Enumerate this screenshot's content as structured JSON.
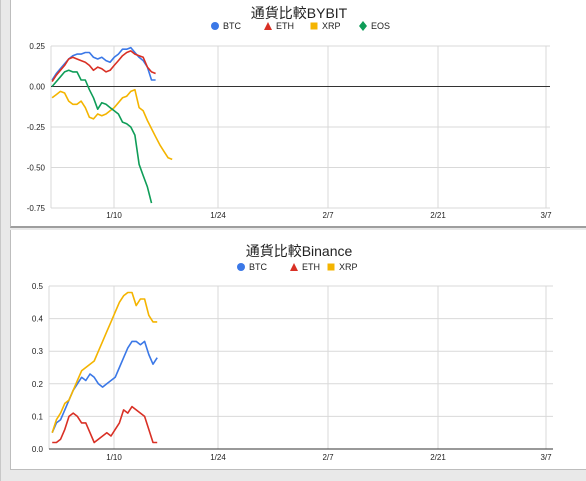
{
  "chart_data": [
    {
      "type": "line",
      "title": "通貨比較BYBIT",
      "xlabel": "",
      "ylabel": "",
      "x_tick_labels": [
        "1/10",
        "1/24",
        "2/7",
        "2/21",
        "3/7"
      ],
      "y_tick_labels": [
        "0.25",
        "0.00",
        "-0.25",
        "-0.50",
        "-0.75"
      ],
      "ylim": [
        -0.75,
        0.25
      ],
      "grid": true,
      "legend": "top",
      "series": [
        {
          "name": "BTC",
          "color": "#3b78e7",
          "marker": "circle",
          "x": [
            1,
            2,
            3,
            4,
            5,
            6,
            7,
            8,
            9,
            10,
            11,
            12,
            13,
            14,
            15,
            16,
            17,
            18,
            19,
            20,
            21,
            22,
            23,
            24,
            25,
            26
          ],
          "values": [
            0.04,
            0.08,
            0.11,
            0.14,
            0.17,
            0.19,
            0.2,
            0.2,
            0.21,
            0.21,
            0.18,
            0.17,
            0.18,
            0.16,
            0.15,
            0.18,
            0.2,
            0.23,
            0.23,
            0.24,
            0.21,
            0.18,
            0.16,
            0.12,
            0.04,
            0.04
          ]
        },
        {
          "name": "ETH",
          "color": "#d93025",
          "marker": "triangle",
          "x": [
            1,
            2,
            3,
            4,
            5,
            6,
            7,
            8,
            9,
            10,
            11,
            12,
            13,
            14,
            15,
            16,
            17,
            18,
            19,
            20,
            21,
            22,
            23,
            24,
            25,
            26
          ],
          "values": [
            0.03,
            0.07,
            0.1,
            0.13,
            0.17,
            0.18,
            0.17,
            0.16,
            0.15,
            0.13,
            0.1,
            0.12,
            0.11,
            0.09,
            0.1,
            0.13,
            0.16,
            0.19,
            0.21,
            0.22,
            0.2,
            0.19,
            0.18,
            0.12,
            0.09,
            0.08
          ]
        },
        {
          "name": "XRP",
          "color": "#f4b400",
          "marker": "square",
          "x": [
            1,
            2,
            3,
            4,
            5,
            6,
            7,
            8,
            9,
            10,
            11,
            12,
            13,
            14,
            15,
            16,
            17,
            18,
            19,
            20,
            21,
            22,
            23,
            24,
            25,
            26,
            27,
            28,
            29,
            30
          ],
          "values": [
            -0.07,
            -0.05,
            -0.03,
            -0.04,
            -0.09,
            -0.11,
            -0.11,
            -0.09,
            -0.13,
            -0.19,
            -0.2,
            -0.17,
            -0.18,
            -0.17,
            -0.15,
            -0.13,
            -0.1,
            -0.07,
            -0.06,
            -0.03,
            -0.02,
            -0.13,
            -0.15,
            -0.21,
            -0.26,
            -0.31,
            -0.36,
            -0.4,
            -0.44,
            -0.45
          ]
        },
        {
          "name": "EOS",
          "color": "#0f9d58",
          "marker": "diamond",
          "x": [
            1,
            2,
            3,
            4,
            5,
            6,
            7,
            8,
            9,
            10,
            11,
            12,
            13,
            14,
            15,
            16,
            17,
            18,
            19,
            20,
            21,
            22,
            23,
            24,
            25
          ],
          "values": [
            0.0,
            0.03,
            0.06,
            0.09,
            0.1,
            0.09,
            0.09,
            0.04,
            0.04,
            -0.02,
            -0.07,
            -0.14,
            -0.1,
            -0.11,
            -0.13,
            -0.15,
            -0.17,
            -0.22,
            -0.23,
            -0.25,
            -0.3,
            -0.48,
            -0.55,
            -0.62,
            -0.72
          ]
        }
      ]
    },
    {
      "type": "line",
      "title": "通貨比較Binance",
      "xlabel": "",
      "ylabel": "",
      "x_tick_labels": [
        "1/10",
        "1/24",
        "2/7",
        "2/21",
        "3/7"
      ],
      "y_tick_labels": [
        "0.5",
        "0.4",
        "0.3",
        "0.2",
        "0.1",
        "0.0"
      ],
      "ylim": [
        0.0,
        0.5
      ],
      "grid": true,
      "legend": "top",
      "series": [
        {
          "name": "BTC",
          "color": "#3b78e7",
          "marker": "circle",
          "x": [
            1,
            2,
            3,
            4,
            5,
            6,
            7,
            8,
            9,
            10,
            11,
            12,
            13,
            14,
            15,
            16,
            17,
            18,
            19,
            20,
            21,
            22,
            23,
            24,
            25,
            26
          ],
          "values": [
            0.05,
            0.08,
            0.09,
            0.12,
            0.15,
            0.18,
            0.2,
            0.22,
            0.21,
            0.23,
            0.22,
            0.2,
            0.19,
            0.2,
            0.21,
            0.22,
            0.25,
            0.28,
            0.31,
            0.33,
            0.33,
            0.32,
            0.33,
            0.29,
            0.26,
            0.28
          ]
        },
        {
          "name": "ETH",
          "color": "#d93025",
          "marker": "triangle",
          "x": [
            1,
            2,
            3,
            4,
            5,
            6,
            7,
            8,
            9,
            10,
            11,
            12,
            13,
            14,
            15,
            16,
            17,
            18,
            19,
            20,
            21,
            22,
            23,
            24,
            25,
            26
          ],
          "values": [
            0.02,
            0.02,
            0.03,
            0.06,
            0.1,
            0.11,
            0.1,
            0.08,
            0.08,
            0.05,
            0.02,
            0.03,
            0.04,
            0.05,
            0.04,
            0.06,
            0.08,
            0.12,
            0.11,
            0.13,
            0.12,
            0.11,
            0.1,
            0.06,
            0.02,
            0.02
          ]
        },
        {
          "name": "XRP",
          "color": "#f4b400",
          "marker": "square",
          "x": [
            1,
            2,
            3,
            4,
            5,
            6,
            7,
            8,
            9,
            10,
            11,
            12,
            13,
            14,
            15,
            16,
            17,
            18,
            19,
            20,
            21,
            22,
            23,
            24,
            25,
            26
          ],
          "values": [
            0.05,
            0.09,
            0.11,
            0.14,
            0.15,
            0.18,
            0.21,
            0.24,
            0.25,
            0.26,
            0.27,
            0.3,
            0.33,
            0.36,
            0.39,
            0.42,
            0.45,
            0.47,
            0.48,
            0.48,
            0.44,
            0.46,
            0.46,
            0.41,
            0.39,
            0.39
          ]
        }
      ]
    }
  ]
}
